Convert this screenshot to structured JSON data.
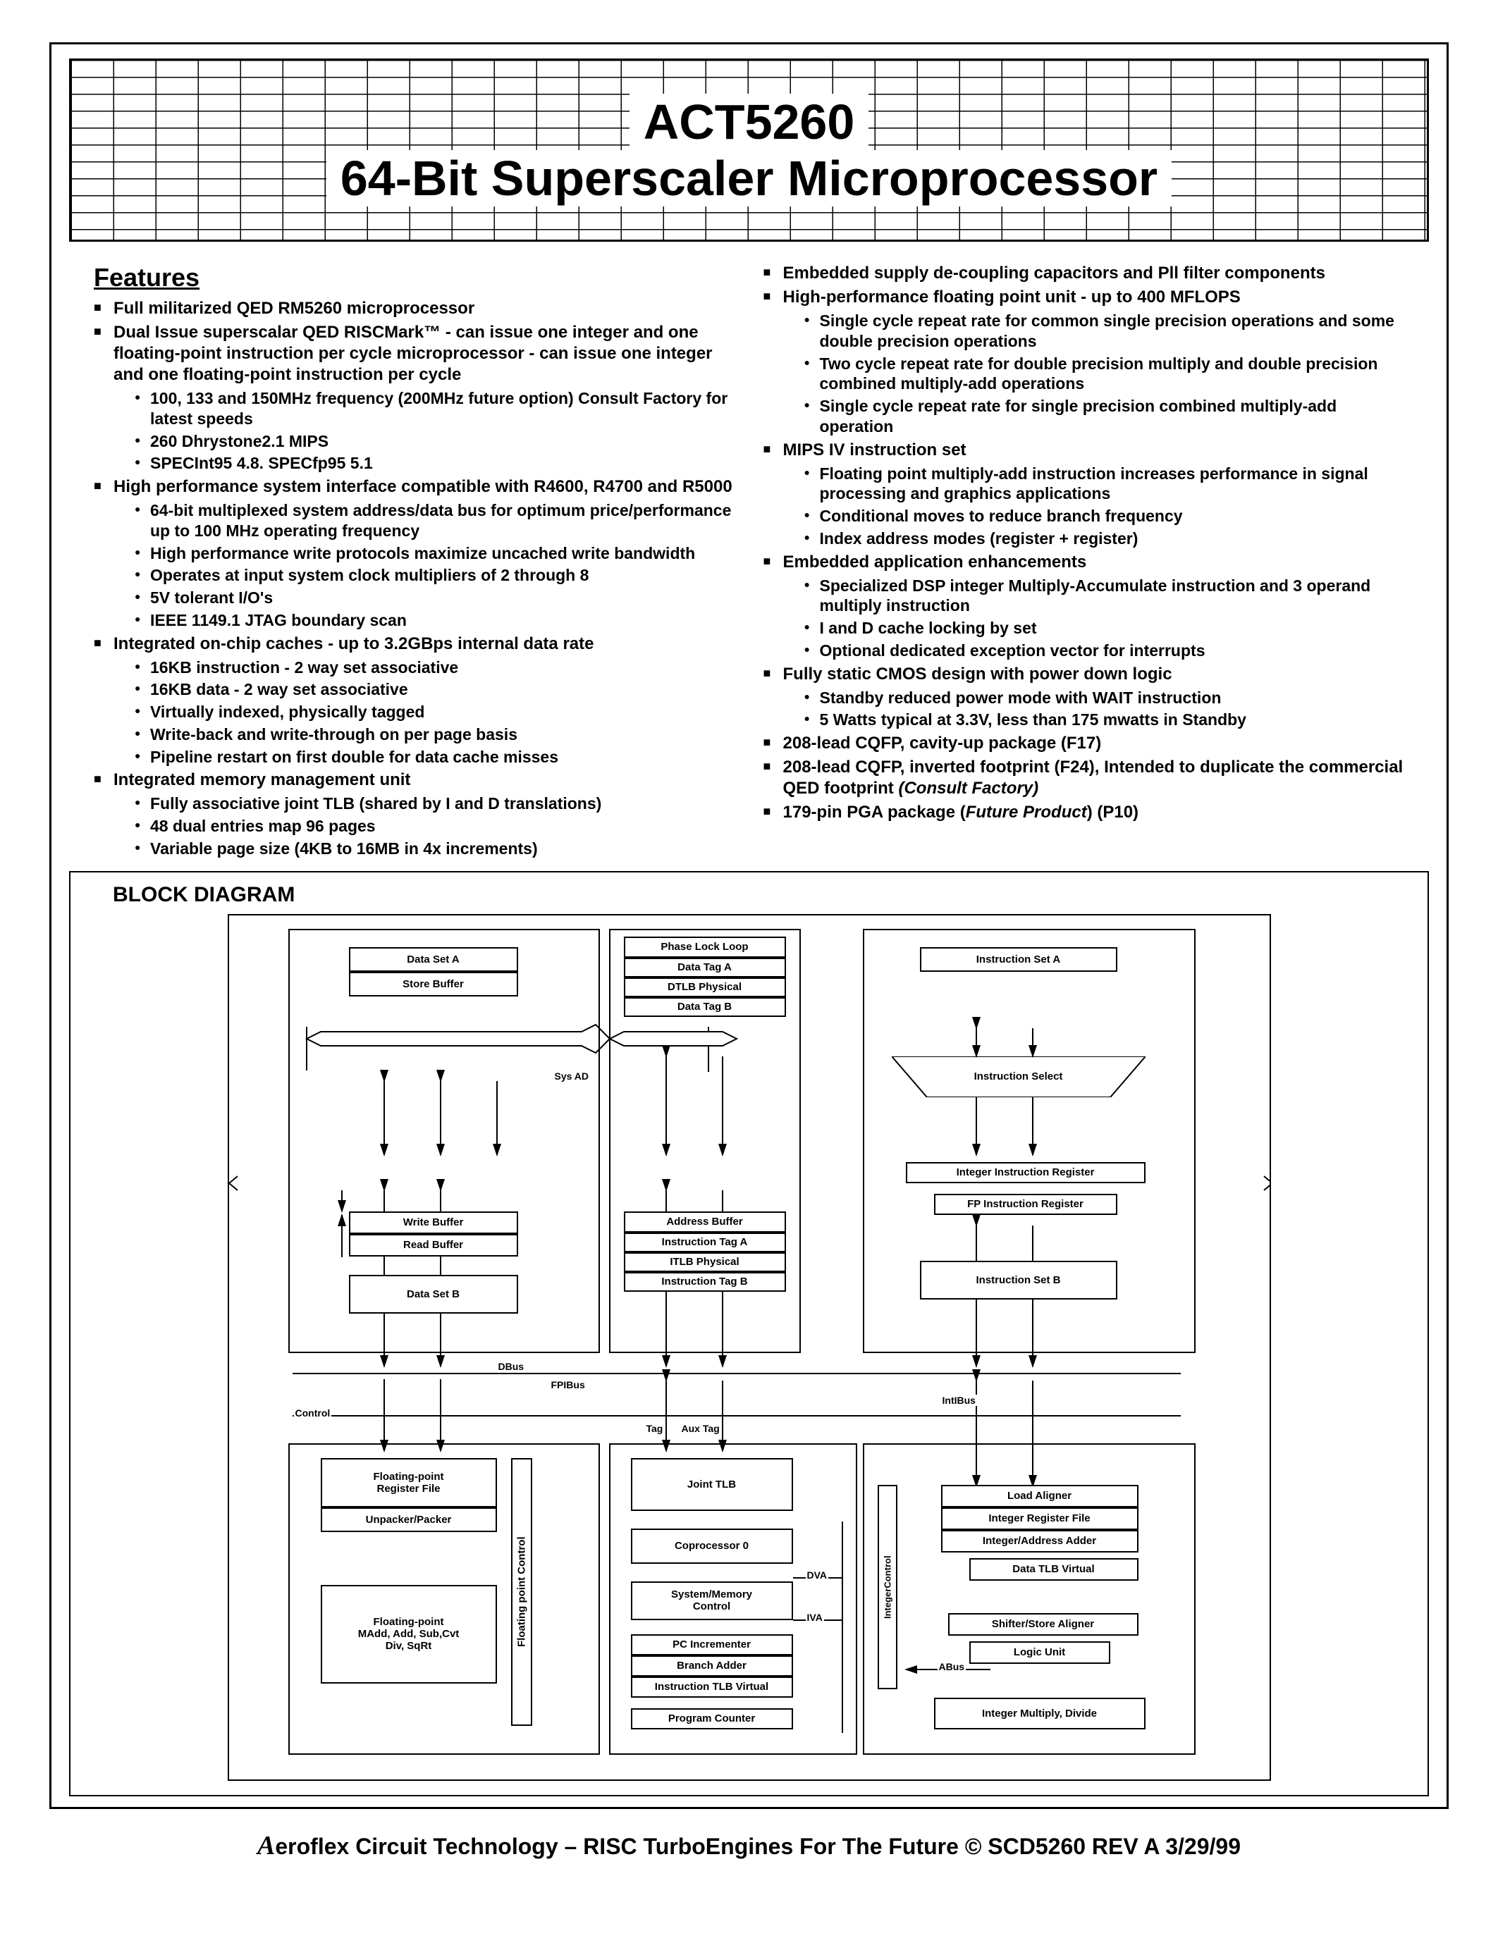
{
  "header": {
    "line1": "ACT5260",
    "line2": "64-Bit Superscaler Microprocessor"
  },
  "features_heading": "Features",
  "left": [
    {
      "t": "Full militarized QED RM5260 microprocessor"
    },
    {
      "t": "Dual Issue superscalar QED RISCMark™ - can issue one integer and one floating-point instruction per cycle microprocessor - can issue one integer and one floating-point instruction per cycle",
      "s": [
        "100, 133 and 150MHz frequency (200MHz future option) Consult Factory for latest speeds",
        "260 Dhrystone2.1 MIPS",
        "SPECInt95 4.8. SPECfp95 5.1"
      ]
    },
    {
      "t": "High performance system interface compatible with R4600, R4700 and R5000",
      "s": [
        "64-bit multiplexed system address/data bus for optimum price/performance up to 100 MHz operating frequency",
        "High performance write protocols maximize uncached write bandwidth",
        "Operates at input system clock multipliers of 2 through 8",
        "5V tolerant I/O's",
        "IEEE 1149.1 JTAG boundary scan"
      ]
    },
    {
      "t": "Integrated on-chip caches - up to 3.2GBps internal data rate",
      "s": [
        "16KB instruction - 2 way set associative",
        "16KB data - 2 way set associative",
        "Virtually indexed, physically tagged",
        "Write-back and write-through on per page basis",
        "Pipeline restart on first double for data cache misses"
      ]
    },
    {
      "t": "Integrated memory management unit",
      "s": [
        "Fully associative joint TLB (shared by I and D translations)",
        "48 dual entries map 96 pages",
        "Variable page size (4KB to 16MB in 4x increments)"
      ]
    }
  ],
  "right": [
    {
      "t": "Embedded supply de-coupling capacitors and Pll filter components"
    },
    {
      "t": "High-performance floating point unit - up to 400 MFLOPS",
      "s": [
        "Single cycle repeat rate for common single precision operations and some double precision operations",
        "Two cycle repeat rate for double precision multiply and double precision combined multiply-add operations",
        "Single cycle repeat rate for single precision combined multiply-add operation"
      ]
    },
    {
      "t": "MIPS IV instruction set",
      "s": [
        "Floating point multiply-add instruction increases performance in signal processing and graphics applications",
        "Conditional moves to reduce branch frequency",
        "Index address modes (register + register)"
      ]
    },
    {
      "t": "Embedded application enhancements",
      "s": [
        "Specialized DSP integer Multiply-Accumulate instruction and 3 operand multiply instruction",
        "I and D cache locking by set",
        "Optional dedicated exception vector for interrupts"
      ]
    },
    {
      "t": "Fully static CMOS design with power down logic",
      "s": [
        " Standby reduced power mode with WAIT instruction",
        " 5 Watts typical at 3.3V, less than 175 mwatts in Standby"
      ]
    },
    {
      "t": "208-lead CQFP, cavity-up package (F17)"
    },
    {
      "html": "208-lead CQFP, inverted footprint (F24), Intended to duplicate the commercial QED footprint <span class='italic'>(Consult Factory)</span>"
    },
    {
      "html": "179-pin PGA package (<span class='italic'>Future Product</span>) (P10)"
    }
  ],
  "diagram": {
    "heading": "BLOCK DIAGRAM",
    "nodes": {
      "data_set_a": "Data Set A",
      "store_buffer": "Store Buffer",
      "phase_lock_loop": "Phase Lock Loop",
      "data_tag_a": "Data Tag A",
      "dtlb_physical": "DTLB Physical",
      "data_tag_b": "Data Tag B",
      "instruction_set_a": "Instruction Set A",
      "instruction_select": "Instruction Select",
      "write_buffer": "Write Buffer",
      "read_buffer": "Read Buffer",
      "data_set_b": "Data Set B",
      "address_buffer": "Address Buffer",
      "instruction_tag_a": "Instruction Tag A",
      "itlb_physical": "ITLB Physical",
      "instruction_tag_b": "Instruction Tag B",
      "integer_instr_reg": "Integer Instruction Register",
      "fp_instr_reg": "FP Instruction Register",
      "instruction_set_b": "Instruction Set B",
      "fp_reg_file": "Floating-point\nRegister File",
      "unpacker": "Unpacker/Packer",
      "fp_madd": "Floating-point\nMAdd, Add, Sub,Cvt\nDiv, SqRt",
      "fp_control": "Floating point Control",
      "joint_tlb": "Joint TLB",
      "coproc0": "Coprocessor 0",
      "sysmem": "System/Memory\nControl",
      "pc_incr": "PC Incrementer",
      "branch_adder": "Branch Adder",
      "instr_tlb_virtual": "Instruction TLB Virtual",
      "program_counter": "Program Counter",
      "load_aligner": "Load Aligner",
      "int_reg_file": "Integer Register File",
      "int_addr_adder": "Integer/Address Adder",
      "data_tlb_virtual": "Data TLB Virtual",
      "shifter": "Shifter/Store Aligner",
      "logic_unit": "Logic Unit",
      "int_mul_div": "Integer Multiply, Divide",
      "int_control": "IntegerControl"
    },
    "labels": {
      "sys_ad": "Sys AD",
      "dbus": "DBus",
      "fpibus": "FPIBus",
      "control": "Control",
      "tag": "Tag",
      "auxtag": "Aux Tag",
      "intibus": "IntIBus",
      "dva": "DVA",
      "iva": "IVA",
      "abus": "ABus"
    }
  },
  "footer": "eroflex Circuit Technology  –  RISC TurboEngines For The Future © SCD5260 REV A 3/29/99"
}
